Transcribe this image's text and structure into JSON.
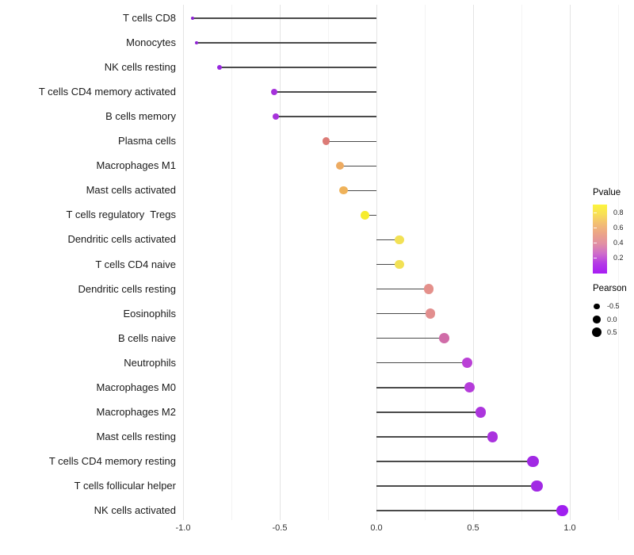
{
  "chart_data": {
    "type": "lollipop",
    "title": "",
    "xlabel": "",
    "ylabel": "",
    "xlim": [
      -1.05,
      1.29
    ],
    "grid": "vertical major and minor gridlines, no axis lines",
    "x_ticks": [
      "-1.0",
      "-0.5",
      "0.0",
      "0.5",
      "1.0"
    ],
    "x_tick_values": [
      -1.0,
      -0.5,
      0.0,
      0.5,
      1.0
    ],
    "x_minor_values": [
      -0.75,
      -0.25,
      0.25,
      0.75,
      1.25
    ],
    "segment_color": "#4a4a4a",
    "rows": [
      {
        "label": "T cells CD8",
        "pearson": -0.95,
        "color": "#8B22D1"
      },
      {
        "label": "Monocytes",
        "pearson": -0.93,
        "color": "#8F24D3"
      },
      {
        "label": "NK cells resting",
        "pearson": -0.81,
        "color": "#9727DF"
      },
      {
        "label": "T cells CD4 memory activated",
        "pearson": -0.53,
        "color": "#A531DB"
      },
      {
        "label": "B cells memory",
        "pearson": -0.52,
        "color": "#A733DB"
      },
      {
        "label": "Plasma cells",
        "pearson": -0.26,
        "color": "#DC7B76"
      },
      {
        "label": "Macrophages M1",
        "pearson": -0.19,
        "color": "#EDAB62"
      },
      {
        "label": "Mast cells activated",
        "pearson": -0.17,
        "color": "#EFB25A"
      },
      {
        "label": "T cells regulatory  Tregs",
        "pearson": -0.06,
        "color": "#F6EC2D"
      },
      {
        "label": "Dendritic cells activated",
        "pearson": 0.12,
        "color": "#F2E155"
      },
      {
        "label": "T cells CD4 naive",
        "pearson": 0.12,
        "color": "#F2E155"
      },
      {
        "label": "Dendritic cells resting",
        "pearson": 0.27,
        "color": "#E4908B"
      },
      {
        "label": "Eosinophils",
        "pearson": 0.28,
        "color": "#E28E8E"
      },
      {
        "label": "B cells naive",
        "pearson": 0.35,
        "color": "#D06CA8"
      },
      {
        "label": "Neutrophils",
        "pearson": 0.47,
        "color": "#BA41D6"
      },
      {
        "label": "Macrophages M0",
        "pearson": 0.48,
        "color": "#B53CDA"
      },
      {
        "label": "Macrophages M2",
        "pearson": 0.54,
        "color": "#AC35DD"
      },
      {
        "label": "Mast cells resting",
        "pearson": 0.6,
        "color": "#AA33DE"
      },
      {
        "label": "T cells CD4 memory resting",
        "pearson": 0.81,
        "color": "#A129E4"
      },
      {
        "label": "T cells follicular helper",
        "pearson": 0.83,
        "color": "#A129E4"
      },
      {
        "label": "NK cells activated",
        "pearson": 0.96,
        "color": "#A020F0"
      }
    ],
    "legend_pvalue": {
      "title": "Pvalue",
      "ticks": [
        "0.8",
        "0.6",
        "0.4",
        "0.2"
      ],
      "tick_pcts": [
        11.5,
        33,
        55,
        77
      ],
      "gradient": [
        "#FCF53D",
        "#F8DE58",
        "#F2BC74",
        "#EBA389",
        "#E18FA5",
        "#CE6CCB",
        "#B439E6",
        "#A81CF4"
      ]
    },
    "legend_pearson": {
      "title": "Pearson",
      "items": [
        {
          "label": "-0.5",
          "d": 7.5
        },
        {
          "label": "0.0",
          "d": 9.5
        },
        {
          "label": "0.5",
          "d": 12
        }
      ]
    }
  }
}
